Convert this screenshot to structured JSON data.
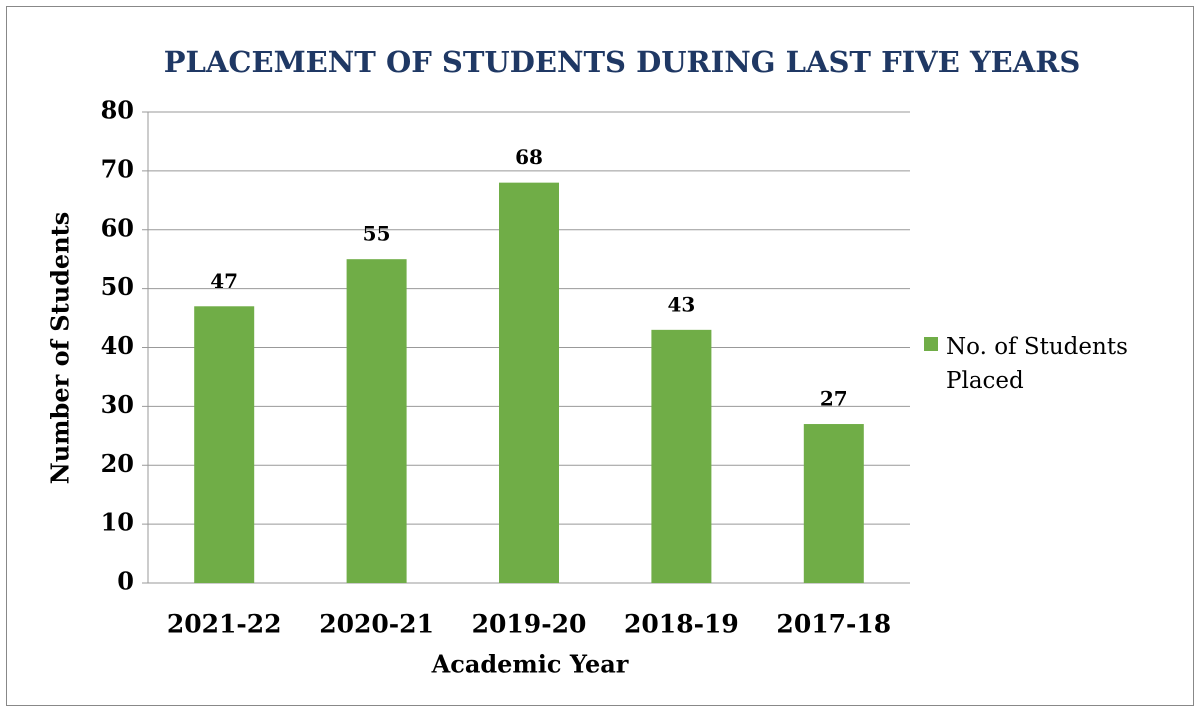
{
  "chart_data": {
    "type": "bar",
    "title": "PLACEMENT OF STUDENTS DURING LAST FIVE YEARS",
    "x_label": "Academic Year",
    "y_label": "Number of Students",
    "categories": [
      "2021-22",
      "2020-21",
      "2019-20",
      "2018-19",
      "2017-18"
    ],
    "series": [
      {
        "name": "No. of Students Placed",
        "color": "#70ad47",
        "values": [
          47,
          55,
          68,
          43,
          27
        ]
      }
    ],
    "ylim": [
      0,
      80
    ],
    "yticks": [
      0,
      10,
      20,
      30,
      40,
      50,
      60,
      70,
      80
    ],
    "grid": true,
    "legend": "right"
  }
}
